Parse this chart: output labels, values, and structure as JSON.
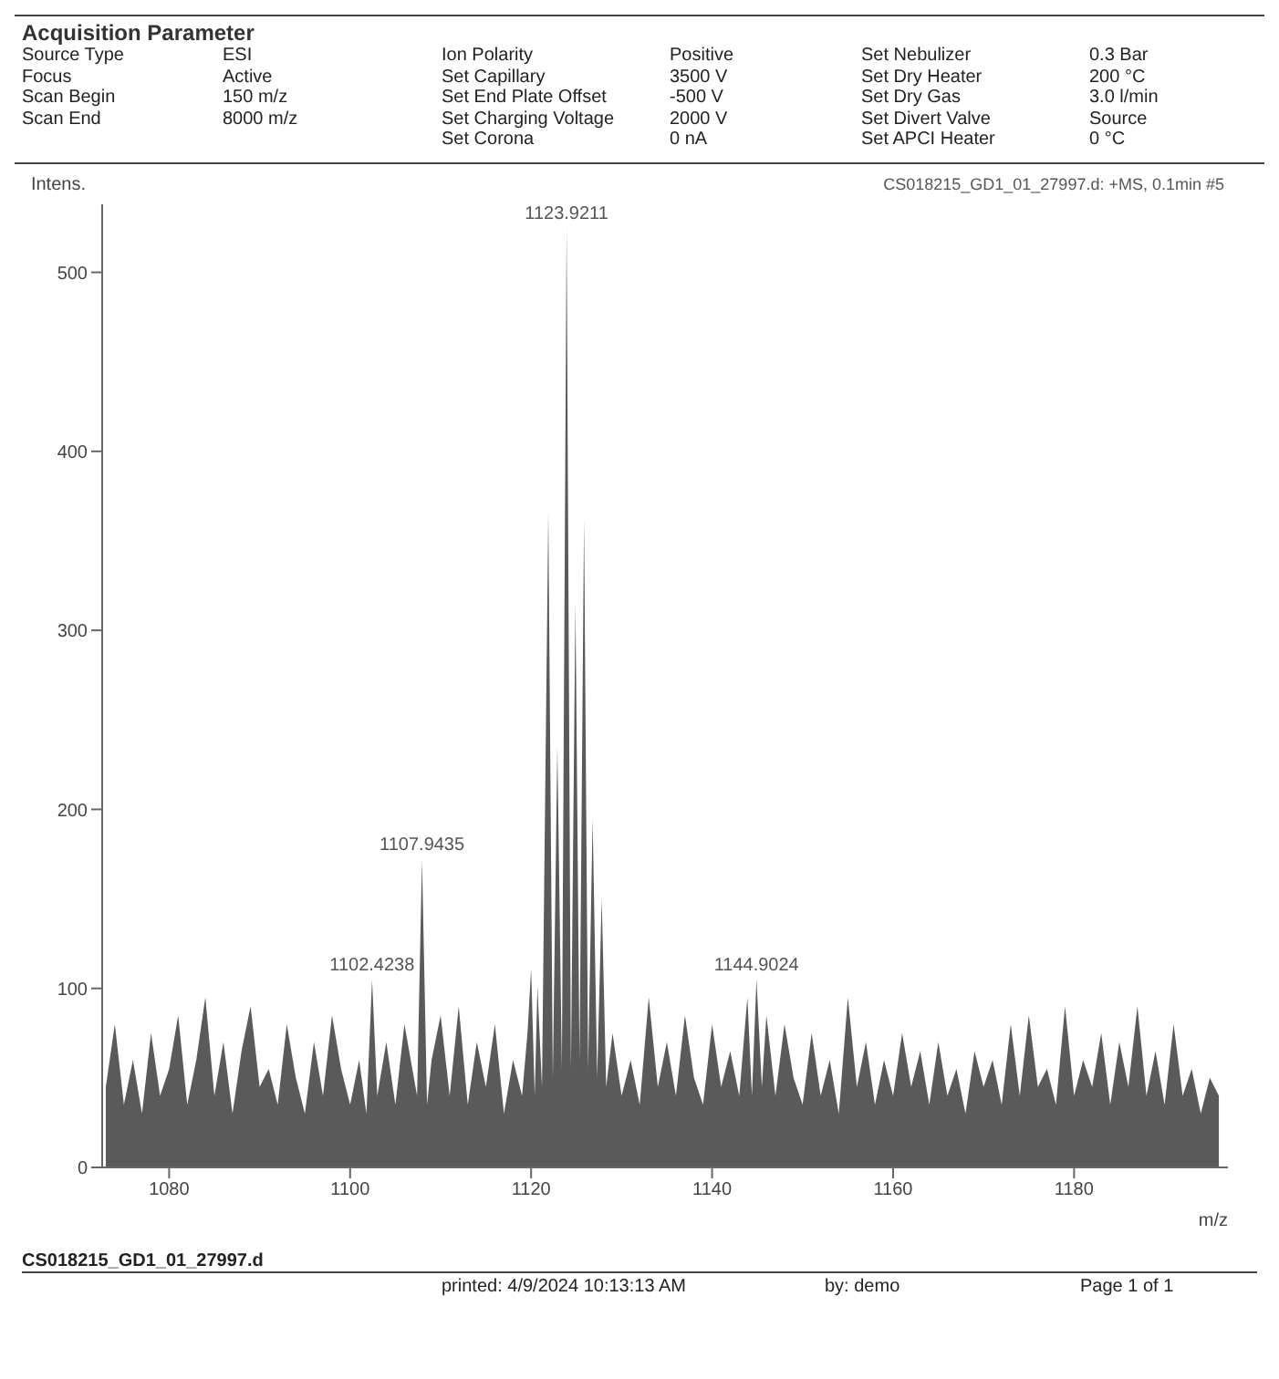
{
  "chart_data": {
    "type": "area",
    "title": "Acquisition Parameter",
    "xlabel": "m/z",
    "ylabel": "Intens.",
    "grid": false,
    "marker": "none",
    "xlim": [
      1072.6,
      1197
    ],
    "ylim": [
      0,
      538
    ],
    "xticks": [
      1080,
      1100,
      1120,
      1140,
      1160,
      1180
    ],
    "yticks": [
      0,
      100,
      200,
      300,
      400,
      500
    ],
    "series": [
      {
        "color": "#5a5a5a",
        "x": [
          1073,
          1074,
          1075,
          1076,
          1077,
          1078,
          1079,
          1080,
          1081,
          1082,
          1083,
          1084,
          1085,
          1086,
          1087,
          1088,
          1089,
          1090,
          1091,
          1092,
          1093,
          1094,
          1095,
          1096,
          1097,
          1098,
          1099,
          1100,
          1101,
          1101.8,
          1102.4238,
          1103,
          1104,
          1105,
          1106,
          1107.4,
          1107.9435,
          1108.5,
          1109,
          1110,
          1111,
          1112,
          1113,
          1114,
          1115,
          1116,
          1117,
          1118,
          1119,
          1119.6,
          1120,
          1120.4,
          1120.7,
          1121.2,
          1121.9,
          1122.4,
          1122.9,
          1123.4,
          1123.9211,
          1124.4,
          1124.9,
          1125.35,
          1125.85,
          1126.3,
          1126.8,
          1127.3,
          1127.8,
          1128.3,
          1129,
          1130,
          1131,
          1132,
          1133,
          1134,
          1135,
          1136,
          1137,
          1138,
          1139,
          1140,
          1141,
          1142,
          1143,
          1143.9,
          1144.4,
          1144.9024,
          1145.5,
          1146,
          1147,
          1148,
          1149,
          1150,
          1151,
          1152,
          1153,
          1154,
          1155,
          1156,
          1157,
          1158,
          1159,
          1160,
          1161,
          1162,
          1163,
          1164,
          1165,
          1166,
          1167,
          1168,
          1169,
          1170,
          1171,
          1172,
          1173,
          1174,
          1175,
          1176,
          1177,
          1178,
          1179,
          1180,
          1181,
          1182,
          1183,
          1184,
          1185,
          1186,
          1187,
          1188,
          1189,
          1190,
          1191,
          1192,
          1193,
          1194,
          1195,
          1196
        ],
        "values": [
          45,
          80,
          35,
          60,
          30,
          75,
          40,
          55,
          85,
          35,
          60,
          95,
          40,
          70,
          30,
          65,
          90,
          45,
          55,
          35,
          80,
          50,
          30,
          70,
          40,
          85,
          55,
          35,
          60,
          30,
          105,
          40,
          70,
          35,
          80,
          40,
          172,
          35,
          60,
          85,
          40,
          90,
          35,
          70,
          45,
          80,
          30,
          60,
          40,
          75,
          111,
          40,
          101,
          45,
          366,
          50,
          235,
          55,
          525,
          55,
          315,
          60,
          362,
          55,
          195,
          50,
          150,
          45,
          75,
          40,
          60,
          35,
          95,
          45,
          70,
          40,
          85,
          50,
          35,
          80,
          45,
          65,
          40,
          95,
          40,
          105,
          45,
          85,
          40,
          80,
          50,
          35,
          75,
          40,
          60,
          30,
          95,
          45,
          70,
          35,
          60,
          40,
          75,
          45,
          65,
          35,
          70,
          40,
          55,
          30,
          65,
          45,
          60,
          35,
          80,
          40,
          85,
          45,
          55,
          35,
          90,
          40,
          60,
          45,
          75,
          35,
          70,
          45,
          90,
          40,
          65,
          35,
          80,
          40,
          55,
          30,
          50,
          40
        ]
      }
    ],
    "annotations": [
      "CS018215_GD1_01_27997.d: +MS, 0.1min #5",
      {
        "text": "1123.9211",
        "x": 1123.9211,
        "y": 525
      },
      {
        "text": "1107.9435",
        "x": 1107.9435,
        "y": 172
      },
      {
        "text": "1102.4238",
        "x": 1102.4238,
        "y": 105
      },
      {
        "text": "1144.9024",
        "x": 1144.9024,
        "y": 105
      },
      "Source Type",
      "ESI",
      "Focus",
      "Active",
      "Scan Begin",
      "150 m/z",
      "Scan End",
      "8000 m/z",
      "Ion Polarity",
      "Positive",
      "Set Capillary",
      "3500 V",
      "Set End Plate Offset",
      "-500 V",
      "Set Charging Voltage",
      "2000 V",
      "Set Corona",
      "0 nA",
      "Set Nebulizer",
      "0.3 Bar",
      "Set Dry Heater",
      "200 °C",
      "Set Dry Gas",
      "3.0 l/min",
      "Set Divert Valve",
      "Source",
      "Set APCI Heater",
      "0 °C",
      "CS018215_GD1_01_27997.d",
      "printed:  4/9/2024 10:13:13 AM",
      "by:  demo",
      "Page 1 of 1"
    ]
  }
}
